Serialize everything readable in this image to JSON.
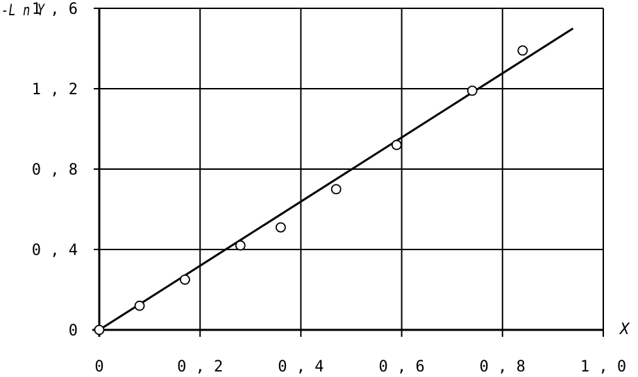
{
  "chart_data": {
    "type": "scatter",
    "title": "",
    "xlabel": "X",
    "ylabel": "-L n Y",
    "xlim": [
      0,
      1.0
    ],
    "ylim": [
      0,
      1.6
    ],
    "grid": true,
    "x_ticks": [
      {
        "value": 0,
        "label": "0"
      },
      {
        "value": 0.2,
        "label": "0 , 2"
      },
      {
        "value": 0.4,
        "label": "0 , 4"
      },
      {
        "value": 0.6,
        "label": "0 , 6"
      },
      {
        "value": 0.8,
        "label": "0 , 8"
      },
      {
        "value": 1.0,
        "label": "1 , 0"
      }
    ],
    "y_ticks": [
      {
        "value": 0,
        "label": "0"
      },
      {
        "value": 0.4,
        "label": "0 , 4"
      },
      {
        "value": 0.8,
        "label": "0 , 8"
      },
      {
        "value": 1.2,
        "label": "1 , 2"
      },
      {
        "value": 1.6,
        "label": "1 , 6"
      }
    ],
    "series": [
      {
        "marker": "open-circle",
        "x": [
          0.0,
          0.08,
          0.17,
          0.28,
          0.36,
          0.47,
          0.59,
          0.74,
          0.84
        ],
        "y": [
          0.0,
          0.12,
          0.25,
          0.42,
          0.51,
          0.7,
          0.92,
          1.19,
          1.39
        ]
      }
    ],
    "fit_line": {
      "x": [
        0.0,
        0.94
      ],
      "y": [
        0.0,
        1.5
      ]
    }
  }
}
